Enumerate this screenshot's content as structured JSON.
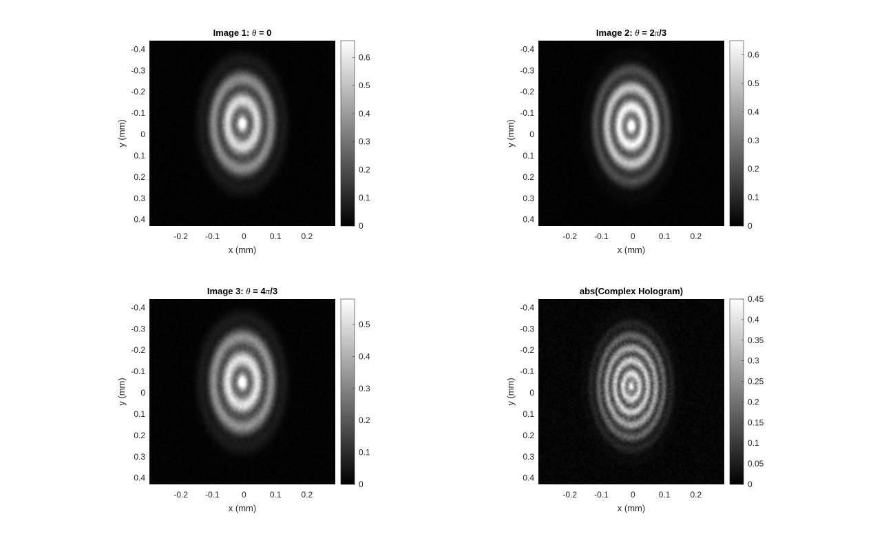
{
  "chart_data": [
    {
      "type": "heatmap",
      "title_prefix": "Image 1: ",
      "title_symbol": "θ",
      "title_suffix": " = 0",
      "xlabel": "x (mm)",
      "ylabel": "y (mm)",
      "xlim": [
        -0.3,
        0.29
      ],
      "ylim": [
        -0.44,
        0.43
      ],
      "y_reversed": true,
      "xticks": [
        -0.2,
        -0.1,
        0,
        0.1,
        0.2
      ],
      "xtick_labels": [
        "-0.2",
        "-0.1",
        "0",
        "0.1",
        "0.2"
      ],
      "yticks": [
        -0.4,
        -0.3,
        -0.2,
        -0.1,
        0,
        0.1,
        0.2,
        0.3,
        0.4
      ],
      "ytick_labels": [
        "-0.4",
        "-0.3",
        "-0.2",
        "-0.1",
        "0",
        "0.1",
        "0.2",
        "0.3",
        "0.4"
      ],
      "colormap": "gray",
      "clim": [
        0,
        0.66
      ],
      "colorbar_ticks": [
        0,
        0.1,
        0.2,
        0.3,
        0.4,
        0.5,
        0.6
      ],
      "colorbar_labels": [
        "0",
        "0.1",
        "0.2",
        "0.3",
        "0.4",
        "0.5",
        "0.6"
      ],
      "pattern": {
        "center": [
          -0.005,
          -0.05
        ],
        "radius_x": 0.13,
        "radius_y": 0.3,
        "rings": 5,
        "peak": 0.55,
        "noise": 0.05
      }
    },
    {
      "type": "heatmap",
      "title_prefix": "Image 2: ",
      "title_symbol": "θ",
      "title_suffix": " = 2",
      "title_pi": "π",
      "title_end": "/3",
      "xlabel": "x (mm)",
      "ylabel": "y (mm)",
      "xlim": [
        -0.3,
        0.29
      ],
      "ylim": [
        -0.44,
        0.43
      ],
      "y_reversed": true,
      "xticks": [
        -0.2,
        -0.1,
        0,
        0.1,
        0.2
      ],
      "xtick_labels": [
        "-0.2",
        "-0.1",
        "0",
        "0.1",
        "0.2"
      ],
      "yticks": [
        -0.4,
        -0.3,
        -0.2,
        -0.1,
        0,
        0.1,
        0.2,
        0.3,
        0.4
      ],
      "ytick_labels": [
        "-0.4",
        "-0.3",
        "-0.2",
        "-0.1",
        "0",
        "0.1",
        "0.2",
        "0.3",
        "0.4"
      ],
      "colormap": "gray",
      "clim": [
        0,
        0.65
      ],
      "colorbar_ticks": [
        0,
        0.1,
        0.2,
        0.3,
        0.4,
        0.5,
        0.6
      ],
      "colorbar_labels": [
        "0",
        "0.1",
        "0.2",
        "0.3",
        "0.4",
        "0.5",
        "0.6"
      ],
      "pattern": {
        "center": [
          -0.005,
          -0.04
        ],
        "radius_x": 0.13,
        "radius_y": 0.3,
        "rings": 6,
        "peak": 0.6,
        "noise": 0.05
      }
    },
    {
      "type": "heatmap",
      "title_prefix": "Image 3: ",
      "title_symbol": "θ",
      "title_suffix": " = 4",
      "title_pi": "π",
      "title_end": "/3",
      "xlabel": "x (mm)",
      "ylabel": "y (mm)",
      "xlim": [
        -0.3,
        0.29
      ],
      "ylim": [
        -0.44,
        0.43
      ],
      "y_reversed": true,
      "xticks": [
        -0.2,
        -0.1,
        0,
        0.1,
        0.2
      ],
      "xtick_labels": [
        "-0.2",
        "-0.1",
        "0",
        "0.1",
        "0.2"
      ],
      "yticks": [
        -0.4,
        -0.3,
        -0.2,
        -0.1,
        0,
        0.1,
        0.2,
        0.3,
        0.4
      ],
      "ytick_labels": [
        "-0.4",
        "-0.3",
        "-0.2",
        "-0.1",
        "0",
        "0.1",
        "0.2",
        "0.3",
        "0.4"
      ],
      "colormap": "gray",
      "clim": [
        0,
        0.58
      ],
      "colorbar_ticks": [
        0,
        0.1,
        0.2,
        0.3,
        0.4,
        0.5
      ],
      "colorbar_labels": [
        "0",
        "0.1",
        "0.2",
        "0.3",
        "0.4",
        "0.5"
      ],
      "pattern": {
        "center": [
          -0.005,
          -0.05
        ],
        "radius_x": 0.13,
        "radius_y": 0.3,
        "rings": 5,
        "peak": 0.5,
        "noise": 0.05
      }
    },
    {
      "type": "heatmap",
      "title_prefix": "abs(Complex Hologram)",
      "xlabel": "x (mm)",
      "ylabel": "y (mm)",
      "xlim": [
        -0.3,
        0.29
      ],
      "ylim": [
        -0.44,
        0.43
      ],
      "y_reversed": true,
      "xticks": [
        -0.2,
        -0.1,
        0,
        0.1,
        0.2
      ],
      "xtick_labels": [
        "-0.2",
        "-0.1",
        "0",
        "0.1",
        "0.2"
      ],
      "yticks": [
        -0.4,
        -0.3,
        -0.2,
        -0.1,
        0,
        0.1,
        0.2,
        0.3,
        0.4
      ],
      "ytick_labels": [
        "-0.4",
        "-0.3",
        "-0.2",
        "-0.1",
        "0",
        "0.1",
        "0.2",
        "0.3",
        "0.4"
      ],
      "colormap": "gray",
      "clim": [
        0,
        0.45
      ],
      "colorbar_ticks": [
        0,
        0.05,
        0.1,
        0.15,
        0.2,
        0.25,
        0.3,
        0.35,
        0.4,
        0.45
      ],
      "colorbar_labels": [
        "0",
        "0.05",
        "0.1",
        "0.15",
        "0.2",
        "0.25",
        "0.3",
        "0.35",
        "0.4",
        "0.45"
      ],
      "pattern": {
        "center": [
          -0.005,
          -0.03
        ],
        "radius_x": 0.13,
        "radius_y": 0.3,
        "rings": 9,
        "peak": 0.33,
        "noise": 0.07
      }
    }
  ]
}
